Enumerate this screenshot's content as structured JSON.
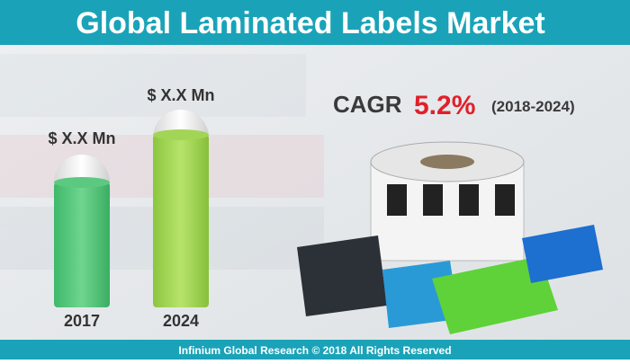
{
  "header": {
    "title": "Global Laminated Labels Market"
  },
  "cagr": {
    "label": "CAGR",
    "value": "5.2%",
    "period": "(2018-2024)"
  },
  "bars": [
    {
      "amount": "$ X.X Mn",
      "year": "2017"
    },
    {
      "amount": "$ X.X Mn",
      "year": "2024"
    }
  ],
  "footer": {
    "text": "Infinium Global Research © 2018 All Rights Reserved"
  }
}
